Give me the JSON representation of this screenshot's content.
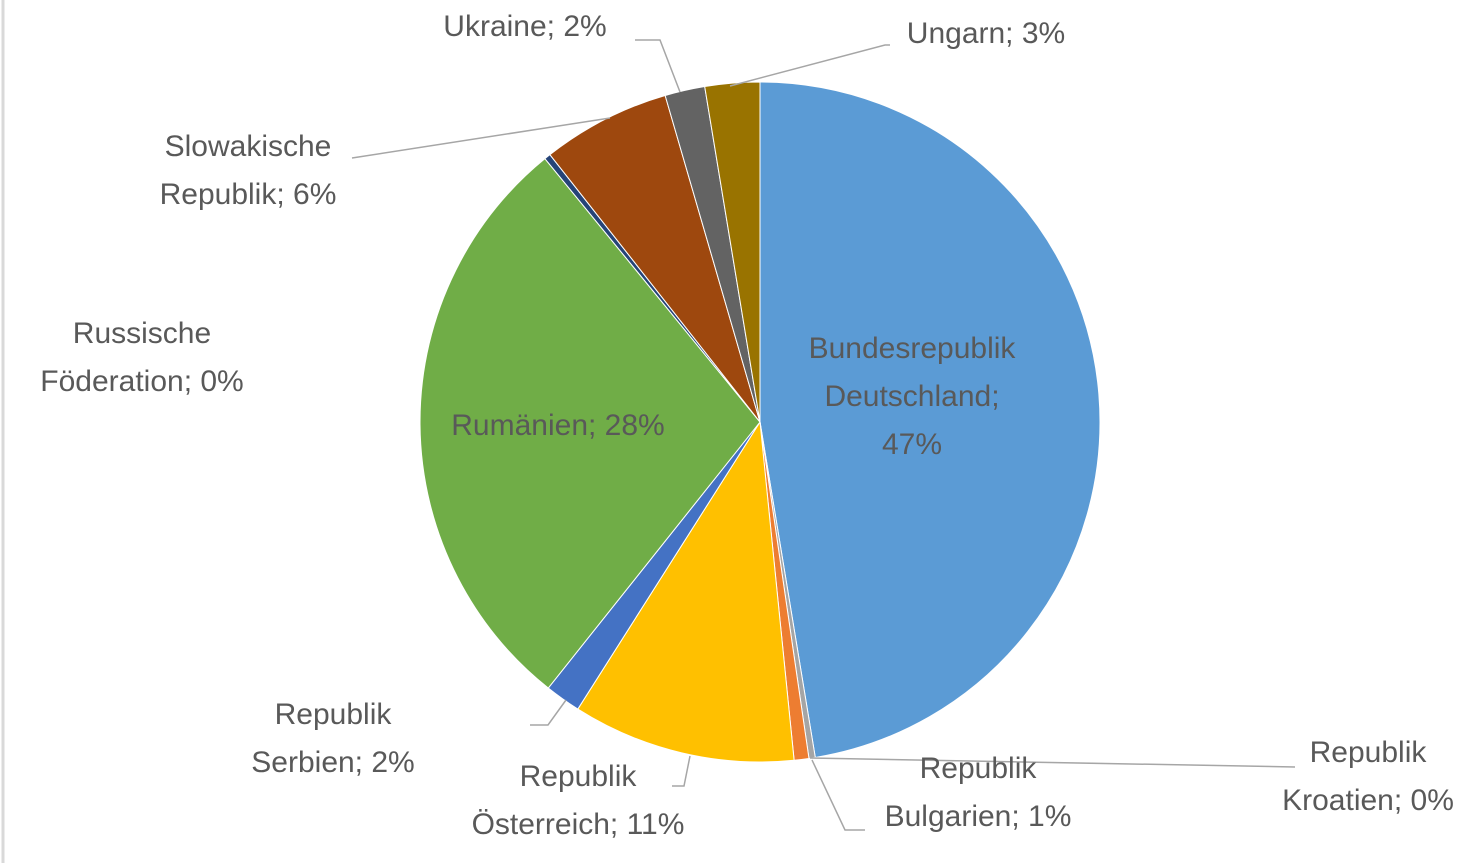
{
  "chart_data": {
    "type": "pie",
    "categories": null,
    "values": [
      47.4,
      0.3,
      0.7,
      10.6,
      1.7,
      28.4,
      0.3,
      6.1,
      1.9,
      2.6
    ],
    "value_labels": [
      [
        "Bundesrepublik",
        "Deutschland;",
        "47%"
      ],
      [
        "Republik",
        "Kroatien; 0%"
      ],
      [
        "Republik",
        "Bulgarien; 1%"
      ],
      [
        "Republik",
        "Österreich; 11%"
      ],
      [
        "Republik",
        "Serbien; 2%"
      ],
      [
        "Rumänien; 28%"
      ],
      [
        "Russische",
        "Föderation; 0%"
      ],
      [
        "Slowakische",
        "Republik; 6%"
      ],
      [
        "Ukraine; 2%"
      ],
      [
        "Ungarn; 3%"
      ]
    ],
    "colors": [
      "#5b9bd5",
      "#a5a5a5",
      "#ed7d31",
      "#ffc000",
      "#4472c4",
      "#70ad47",
      "#264478",
      "#9e480e",
      "#636363",
      "#997300"
    ]
  }
}
